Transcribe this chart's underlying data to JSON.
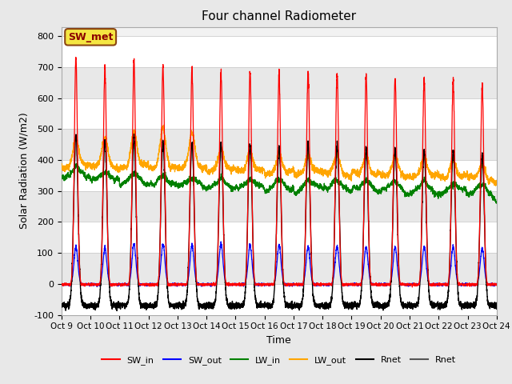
{
  "title": "Four channel Radiometer",
  "xlabel": "Time",
  "ylabel": "Solar Radiation (W/m2)",
  "ylim": [
    -100,
    830
  ],
  "yticks": [
    -100,
    0,
    100,
    200,
    300,
    400,
    500,
    600,
    700,
    800
  ],
  "x_labels": [
    "Oct 9",
    "Oct 10",
    "Oct 11",
    "Oct 12",
    "Oct 13",
    "Oct 14",
    "Oct 15",
    "Oct 16",
    "Oct 17",
    "Oct 18",
    "Oct 19",
    "Oct 20",
    "Oct 21",
    "Oct 22",
    "Oct 23",
    "Oct 24"
  ],
  "num_days": 15,
  "background_color": "#e8e8e8",
  "plot_bg_color": "#f2f2f2",
  "legend_entries": [
    "SW_in",
    "SW_out",
    "LW_in",
    "LW_out",
    "Rnet",
    "Rnet"
  ],
  "legend_colors": [
    "red",
    "blue",
    "green",
    "orange",
    "black",
    "#555555"
  ],
  "annotation_text": "SW_met",
  "annotation_bg": "#f5e642",
  "annotation_border": "#8B4513",
  "sw_peaks": [
    730,
    695,
    720,
    700,
    690,
    685,
    685,
    675,
    680,
    680,
    670,
    665,
    660,
    660,
    640
  ],
  "sw_out_peaks": [
    120,
    115,
    130,
    130,
    125,
    130,
    125,
    125,
    120,
    120,
    120,
    120,
    120,
    120,
    115
  ],
  "lw_out_peaks": [
    470,
    470,
    490,
    505,
    490,
    430,
    430,
    415,
    415,
    415,
    415,
    410,
    405,
    400,
    385
  ],
  "lw_out_base": [
    380,
    380,
    380,
    375,
    375,
    370,
    365,
    360,
    360,
    355,
    355,
    350,
    350,
    345,
    340
  ],
  "lw_in_base": [
    350,
    340,
    330,
    325,
    320,
    315,
    315,
    310,
    310,
    310,
    308,
    305,
    302,
    300,
    295
  ],
  "rnet_peaks": [
    480,
    460,
    470,
    460,
    455,
    450,
    450,
    445,
    450,
    450,
    440,
    435,
    430,
    430,
    415
  ]
}
